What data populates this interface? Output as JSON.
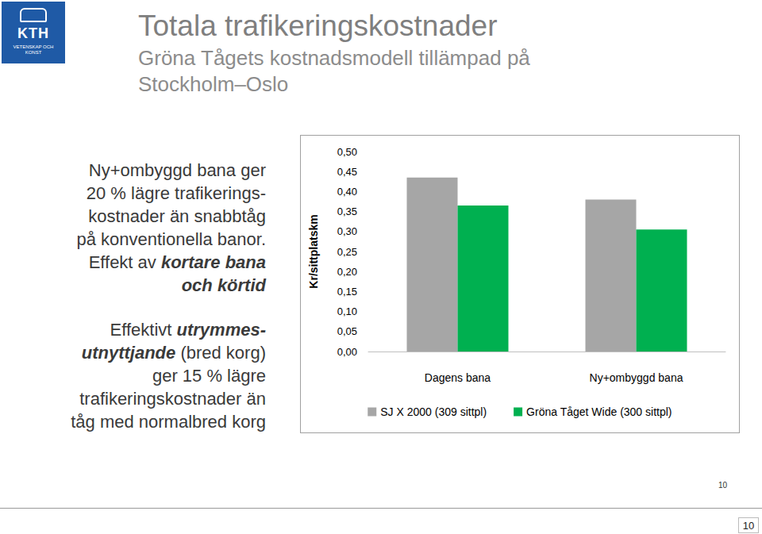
{
  "slide": {
    "logo": {
      "name": "KTH",
      "motto": "VETENSKAP OCH KONST"
    },
    "title": "Totala trafikeringskostnader",
    "subtitle": [
      "Gröna Tågets kostnadsmodell tillämpad på",
      "Stockholm–Oslo"
    ],
    "text": [
      [
        [
          {
            "text": "Ny+ombyggd bana ger"
          }
        ],
        [
          {
            "text": "20 % lägre trafikerings-"
          }
        ],
        [
          {
            "text": "kostnader än snabbtåg"
          }
        ],
        [
          {
            "text": "på konventionella banor."
          }
        ],
        [
          {
            "text": "Effekt av "
          },
          {
            "text": "kortare bana",
            "bold_italic": true
          }
        ],
        [
          {
            "text": "och körtid",
            "bold_italic": true
          }
        ]
      ],
      [
        [
          {
            "text": "Effektivt "
          },
          {
            "text": "utrymmes-",
            "bold_italic": true
          }
        ],
        [
          {
            "text": "utnyttjande",
            "bold_italic": true
          },
          {
            "text": " (bred korg)"
          }
        ],
        [
          {
            "text": "ger 15 % lägre"
          }
        ],
        [
          {
            "text": "trafikeringskostnader än"
          }
        ],
        [
          {
            "text": "tåg med normalbred korg"
          }
        ]
      ]
    ],
    "page_number": "10"
  },
  "chart_data": {
    "type": "bar",
    "y_label": "Kr/sittplatskm",
    "categories": [
      "Dagens bana",
      "Ny+ombyggd bana"
    ],
    "series": [
      {
        "name": "SJ X 2000 (309 sittpl)",
        "color": "#a6a6a6",
        "values": [
          0.435,
          0.38
        ]
      },
      {
        "name": "Gröna Tåget Wide (300 sittpl)",
        "color": "#00b050",
        "values": [
          0.365,
          0.305
        ]
      }
    ],
    "ylim": [
      0,
      0.5
    ],
    "yticks": [
      {
        "value": 0,
        "label": "0,00"
      },
      {
        "value": 0.05,
        "label": "0,05"
      },
      {
        "value": 0.1,
        "label": "0,10"
      },
      {
        "value": 0.15,
        "label": "0,15"
      },
      {
        "value": 0.2,
        "label": "0,20"
      },
      {
        "value": 0.25,
        "label": "0,25"
      },
      {
        "value": 0.3,
        "label": "0,30"
      },
      {
        "value": 0.35,
        "label": "0,35"
      },
      {
        "value": 0.4,
        "label": "0,40"
      },
      {
        "value": 0.45,
        "label": "0,45"
      },
      {
        "value": 0.5,
        "label": "0,50"
      }
    ],
    "grid": false,
    "legend": "bottom"
  }
}
